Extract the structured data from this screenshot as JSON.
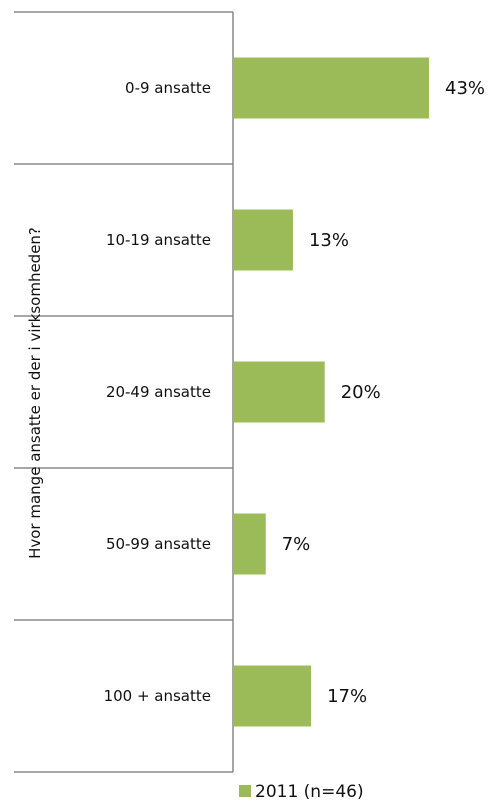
{
  "chart_data": {
    "type": "bar",
    "orientation": "horizontal",
    "categories": [
      "0-9 ansatte",
      "10-19 ansatte",
      "20-49 ansatte",
      "50-99 ansatte",
      "100 + ansatte"
    ],
    "series": [
      {
        "name": "2011 (n=46)",
        "values": [
          43,
          13,
          20,
          7,
          17
        ],
        "labels": [
          "43%",
          "13%",
          "20%",
          "7%",
          "17%"
        ],
        "color": "#9BBB59"
      }
    ],
    "ylabel": "Hvor mange ansatte er der i virksomheden?",
    "xlabel": "",
    "xlim": [
      0,
      100
    ],
    "grid": false,
    "legend_position": "bottom-right"
  }
}
